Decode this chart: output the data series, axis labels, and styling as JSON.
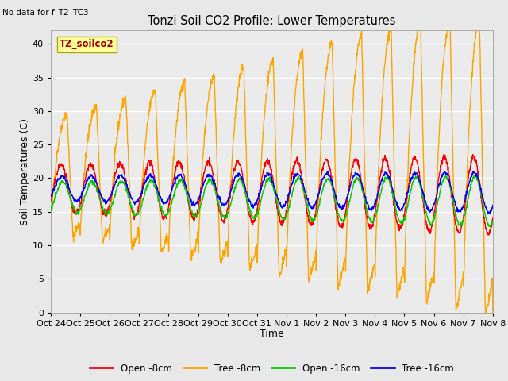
{
  "title": "Tonzi Soil CO2 Profile: Lower Temperatures",
  "subtitle": "No data for f_T2_TC3",
  "xlabel": "Time",
  "ylabel": "Soil Temperatures (C)",
  "ylim": [
    0,
    42
  ],
  "yticks": [
    0,
    5,
    10,
    15,
    20,
    25,
    30,
    35,
    40
  ],
  "x_labels": [
    "Oct 24",
    "Oct 25",
    "Oct 26",
    "Oct 27",
    "Oct 28",
    "Oct 29",
    "Oct 30",
    "Oct 31",
    "Nov 1",
    "Nov 2",
    "Nov 3",
    "Nov 4",
    "Nov 5",
    "Nov 6",
    "Nov 7",
    "Nov 8"
  ],
  "colors": {
    "open_8cm": "#FF0000",
    "tree_8cm": "#FFA500",
    "open_16cm": "#00CC00",
    "tree_16cm": "#0000FF"
  },
  "legend_labels": [
    "Open -8cm",
    "Tree -8cm",
    "Open -16cm",
    "Tree -16cm"
  ],
  "legend_box_color": "#FFFF99",
  "legend_box_label": "TZ_soilco2",
  "bg_color": "#E8E8E8",
  "plot_bg": "#EBEBEB",
  "n_days": 15,
  "pts_per_day": 96,
  "figsize": [
    6.4,
    4.8
  ],
  "dpi": 100
}
